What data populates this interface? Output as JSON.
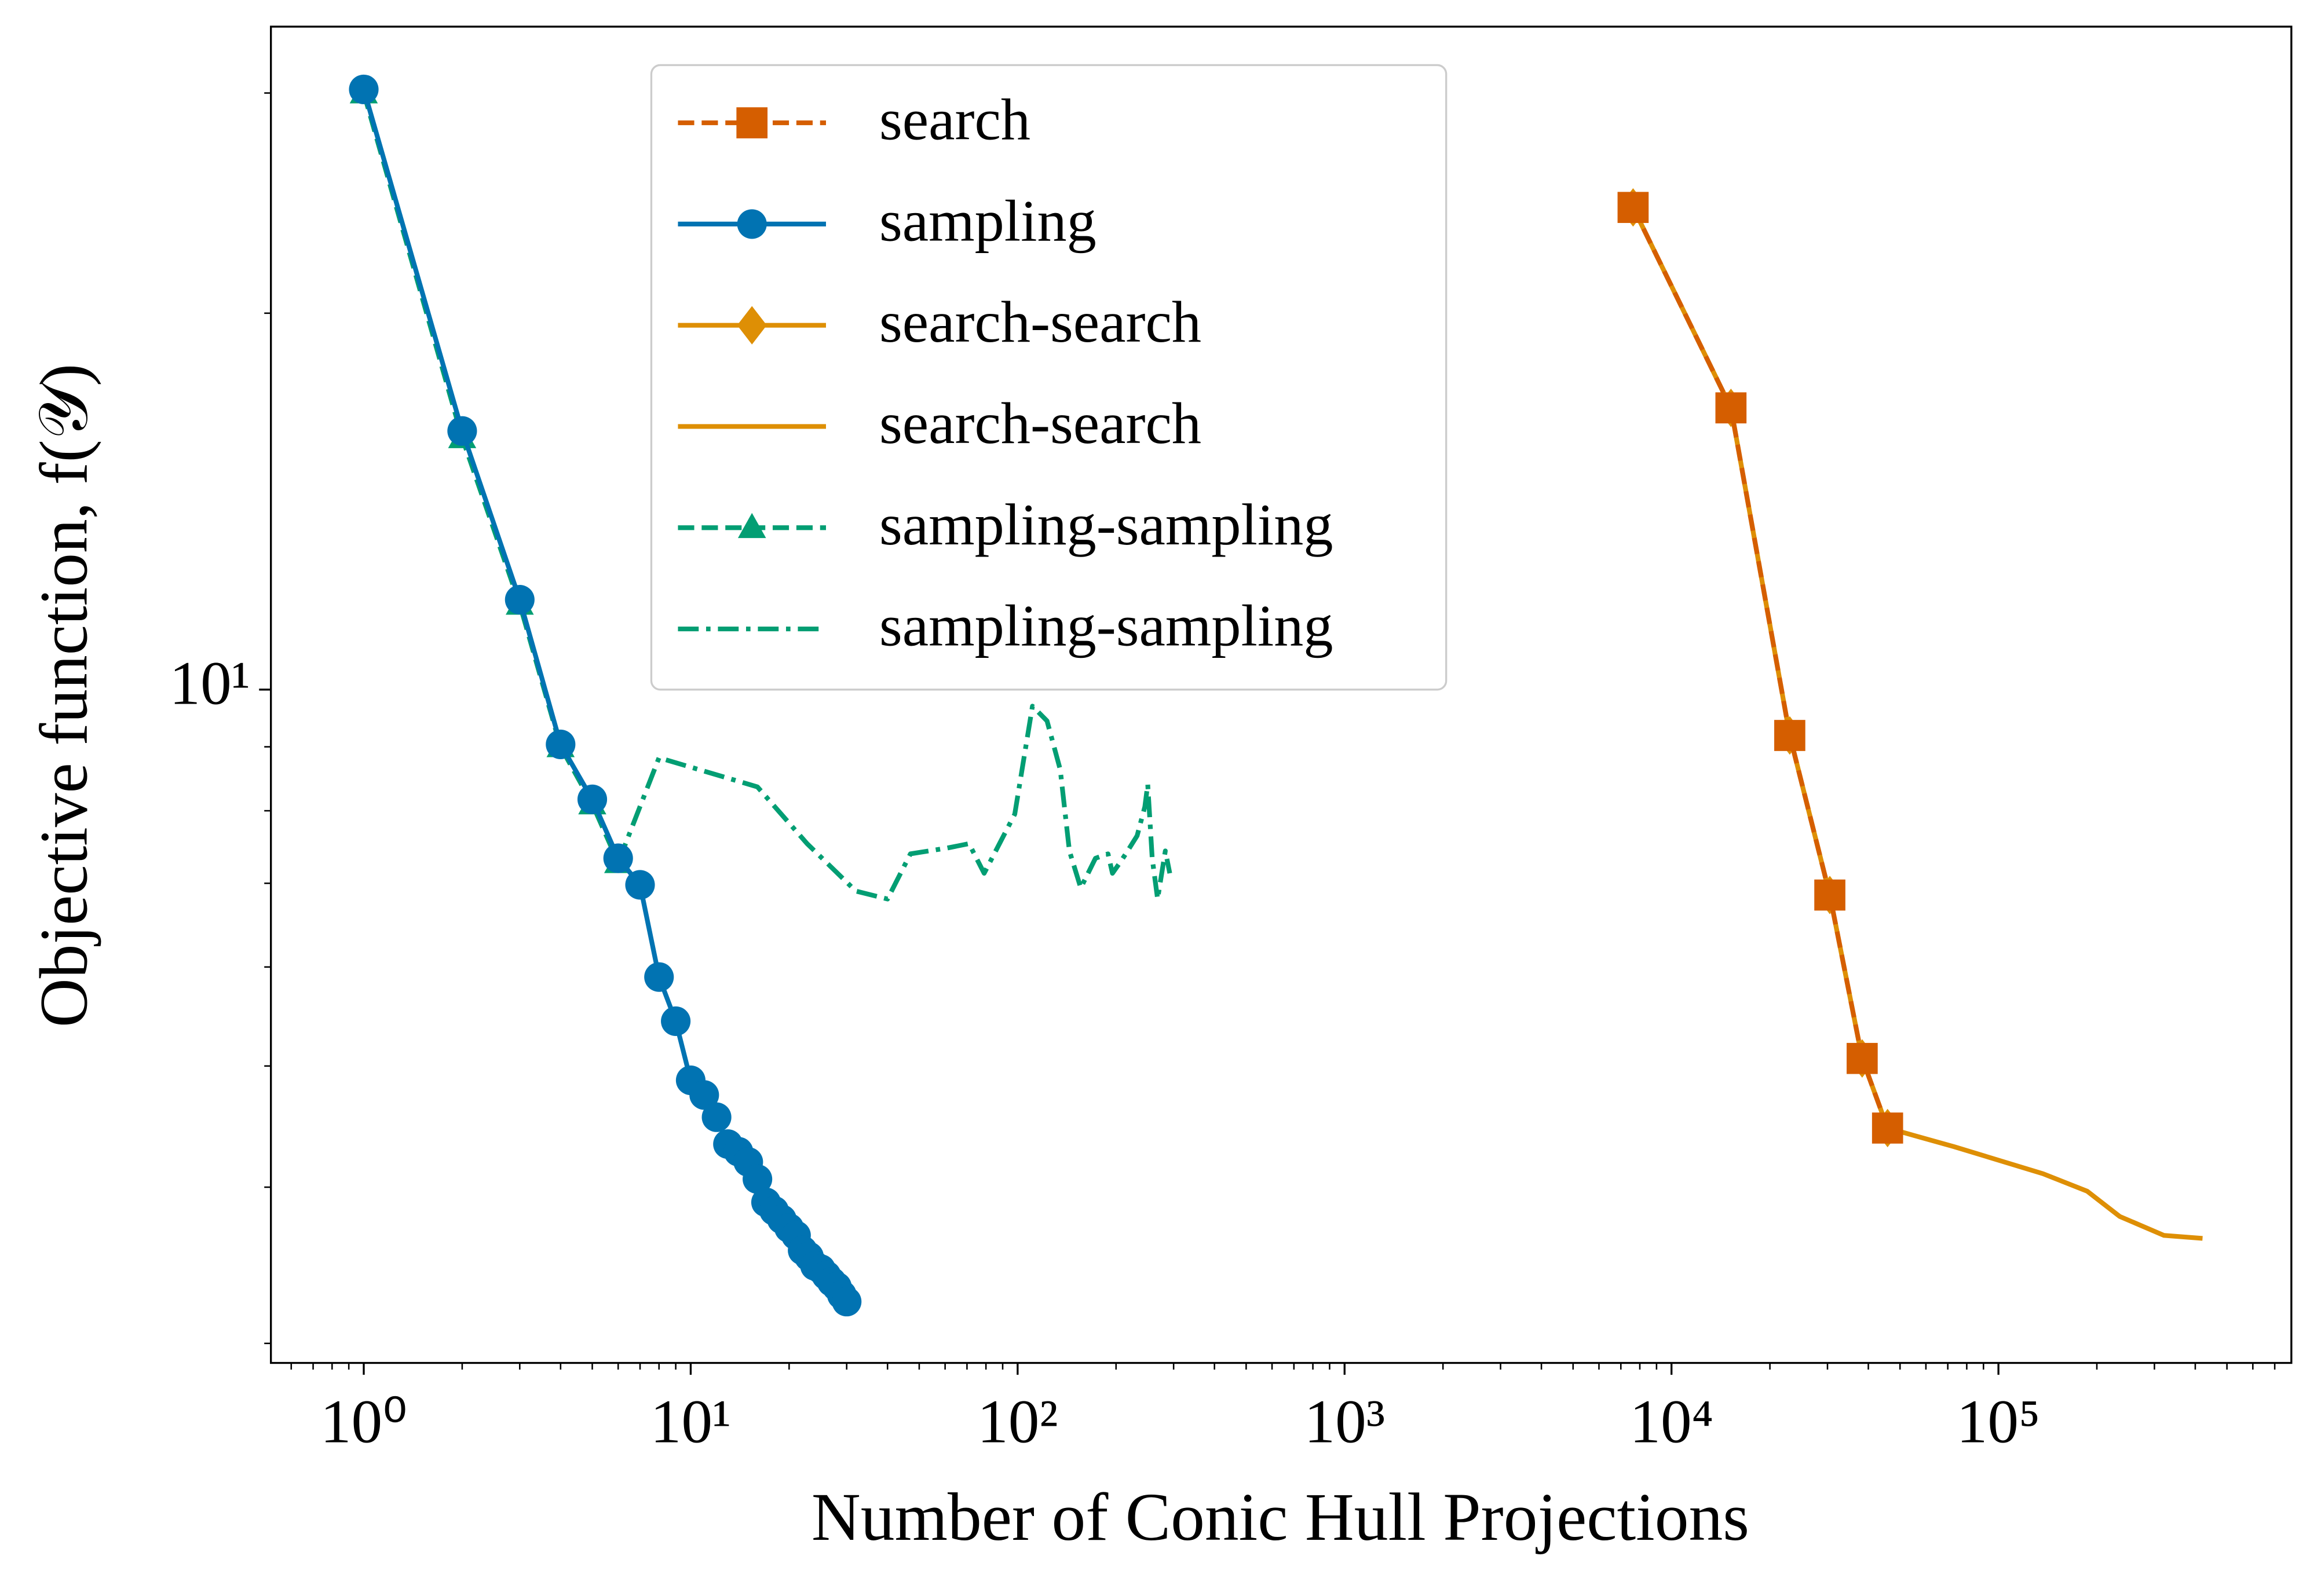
{
  "chart_data": {
    "type": "line",
    "xlabel": "Number of Conic Hull Projections",
    "ylabel": "Objective function, f(𝒴)",
    "xscale": "log",
    "yscale": "log",
    "xlim": [
      0.52,
      787000
    ],
    "ylim": [
      2.894,
      33.9
    ],
    "xticks": [
      {
        "value": 1,
        "label": "10⁰"
      },
      {
        "value": 10,
        "label": "10¹"
      },
      {
        "value": 100,
        "label": "10²"
      },
      {
        "value": 1000,
        "label": "10³"
      },
      {
        "value": 10000,
        "label": "10⁴"
      },
      {
        "value": 100000,
        "label": "10⁵"
      }
    ],
    "xminorticks": [
      0.6,
      0.7,
      0.8,
      0.9,
      2,
      3,
      4,
      5,
      6,
      7,
      8,
      9,
      20,
      30,
      40,
      50,
      60,
      70,
      80,
      90,
      200,
      300,
      400,
      500,
      600,
      700,
      800,
      900,
      2000,
      3000,
      4000,
      5000,
      6000,
      7000,
      8000,
      9000,
      20000,
      30000,
      40000,
      50000,
      60000,
      70000,
      80000,
      90000,
      200000,
      300000,
      400000,
      500000,
      600000,
      700000
    ],
    "yticks": [
      {
        "value": 10,
        "label": "10¹"
      }
    ],
    "yminorticks": [
      3,
      4,
      5,
      6,
      7,
      8,
      9,
      20,
      30
    ],
    "legend": "upper center",
    "series": [
      {
        "name": "search",
        "color": "#d55e00",
        "linestyle": "dashed",
        "marker": "s",
        "x": [
          7630,
          15200,
          23000,
          30500,
          38300,
          45800
        ],
        "values": [
          24.3,
          16.8,
          9.19,
          6.85,
          5.07,
          4.46
        ]
      },
      {
        "name": "sampling",
        "color": "#0173b2",
        "linestyle": "solid",
        "marker": "o",
        "x": [
          1,
          2,
          3,
          4,
          5,
          6,
          7,
          8,
          9,
          10,
          11,
          12,
          13,
          14,
          15,
          16,
          17,
          18,
          19,
          20,
          21,
          22,
          23,
          24,
          25,
          26,
          27,
          28,
          29,
          30
        ],
        "values": [
          30.2,
          16.1,
          11.8,
          9.04,
          8.17,
          7.33,
          6.98,
          5.89,
          5.43,
          4.87,
          4.74,
          4.55,
          4.33,
          4.27,
          4.19,
          4.06,
          3.89,
          3.83,
          3.77,
          3.71,
          3.66,
          3.56,
          3.52,
          3.46,
          3.44,
          3.4,
          3.36,
          3.33,
          3.28,
          3.24
        ]
      },
      {
        "name": "search-search",
        "color": "#de8f05",
        "linestyle": "solid",
        "marker": "D",
        "x": [
          7630,
          15200,
          23000,
          30500,
          38300,
          45800
        ],
        "values": [
          24.3,
          16.8,
          9.19,
          6.85,
          5.07,
          4.46
        ]
      },
      {
        "name": "search-search",
        "color": "#de8f05",
        "linestyle": "solid",
        "marker": null,
        "x": [
          45800,
          73100,
          137000,
          187000,
          235000,
          321000,
          421000
        ],
        "values": [
          4.46,
          4.31,
          4.1,
          3.97,
          3.79,
          3.66,
          3.64
        ]
      },
      {
        "name": "sampling-sampling",
        "color": "#029e73",
        "linestyle": "dashed",
        "marker": "^",
        "x": [
          1,
          2,
          3,
          4,
          5,
          6
        ],
        "values": [
          30.0,
          15.9,
          11.7,
          9.0,
          8.1,
          7.27
        ]
      },
      {
        "name": "sampling-sampling",
        "color": "#029e73",
        "linestyle": "dashdot",
        "marker": null,
        "x": [
          6,
          8,
          16,
          22.7,
          32,
          40,
          47,
          61,
          71,
          79,
          98,
          111,
          123,
          135,
          144,
          156,
          173,
          189,
          195,
          207,
          217,
          232,
          245,
          250,
          258,
          268,
          283,
          292
        ],
        "values": [
          7.27,
          8.82,
          8.36,
          7.53,
          6.9,
          6.8,
          7.39,
          7.47,
          7.53,
          7.13,
          7.95,
          9.7,
          9.44,
          8.63,
          7.43,
          6.94,
          7.33,
          7.39,
          7.13,
          7.29,
          7.43,
          7.64,
          8.06,
          8.4,
          7.33,
          6.8,
          7.43,
          7.13
        ]
      }
    ]
  }
}
